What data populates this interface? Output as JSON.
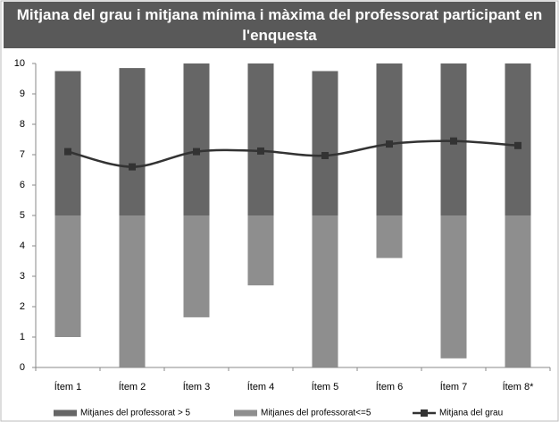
{
  "chart_data": {
    "type": "floating-bar",
    "title": "Mitjana del grau i mitjana mínima i màxima del professorat participant en l'enquesta",
    "categories": [
      "Ítem 1",
      "Ítem 2",
      "Ítem 3",
      "Ítem 4",
      "Ítem 5",
      "Ítem 6",
      "Ítem 7",
      "Ítem 8*"
    ],
    "series": [
      {
        "name": "Mitjanes del professorat > 5",
        "color": "#666666",
        "type": "bar",
        "values": [
          [
            5,
            9.75
          ],
          [
            5,
            9.85
          ],
          [
            5,
            10
          ],
          [
            5,
            10
          ],
          [
            5,
            9.75
          ],
          [
            5,
            10
          ],
          [
            5,
            10
          ],
          [
            5,
            10
          ]
        ]
      },
      {
        "name": "Mitjanes del professorat<=5",
        "color": "#8e8e8e",
        "type": "bar",
        "values": [
          [
            1,
            5
          ],
          [
            0,
            5
          ],
          [
            1.65,
            5
          ],
          [
            2.7,
            5
          ],
          [
            0,
            5
          ],
          [
            3.6,
            5
          ],
          [
            0.3,
            5
          ],
          [
            0,
            5
          ]
        ]
      },
      {
        "name": "Mitjana del grau",
        "color": "#333333",
        "type": "line",
        "values": [
          7.1,
          6.6,
          7.1,
          7.12,
          6.97,
          7.35,
          7.45,
          7.3
        ]
      }
    ],
    "ylim": [
      0,
      10
    ],
    "yticks": [
      0,
      1,
      2,
      3,
      4,
      5,
      6,
      7,
      8,
      9,
      10
    ]
  }
}
